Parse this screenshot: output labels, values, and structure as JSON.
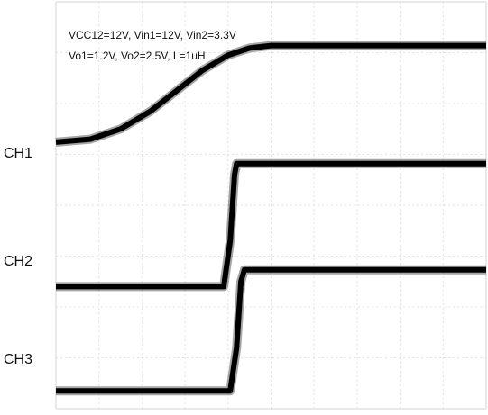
{
  "annotations": [
    "VCC12=12V, Vin1=12V, Vin2=3.3V",
    "Vo1=1.2V, Vo2=2.5V, L=1uH"
  ],
  "chart_data": {
    "type": "line",
    "title": "",
    "xlabel": "",
    "ylabel": "",
    "grid": true,
    "grid_divisions": {
      "x": 10,
      "y": 8
    },
    "xlim": [
      0,
      10
    ],
    "ylim": [
      0,
      8
    ],
    "series": [
      {
        "name": "CH1",
        "color": "#000000",
        "x": [
          0,
          0.8,
          1.5,
          2.2,
          2.8,
          3.4,
          4.0,
          4.5,
          5.0,
          10
        ],
        "y": [
          5.24,
          5.3,
          5.5,
          5.85,
          6.25,
          6.65,
          6.95,
          7.09,
          7.14,
          7.14
        ]
      },
      {
        "name": "CH2",
        "color": "#000000",
        "x": [
          0,
          3.9,
          4.05,
          4.15,
          4.2,
          10
        ],
        "y": [
          2.4,
          2.4,
          3.3,
          4.6,
          4.82,
          4.82
        ]
      },
      {
        "name": "CH3",
        "color": "#000000",
        "x": [
          0,
          4.05,
          4.2,
          4.3,
          4.38,
          10
        ],
        "y": [
          0.35,
          0.35,
          1.2,
          2.5,
          2.73,
          2.73
        ]
      }
    ]
  }
}
